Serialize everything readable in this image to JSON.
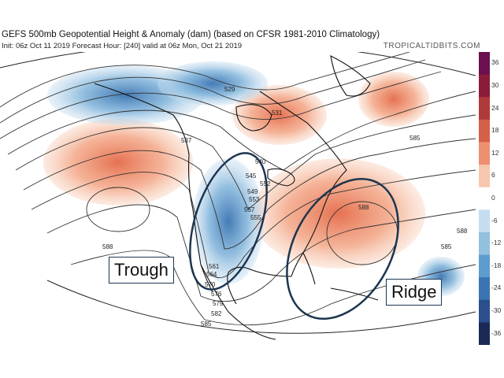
{
  "header": {
    "title": "GEFS 500mb Geopotential Height & Anomaly (dam) (based on CFSR 1981-2010 Climatology)",
    "subtitle": "Init: 06z Oct 11 2019   Forecast Hour: [240]   valid at 06z Mon, Oct 21 2019",
    "brand": "TROPICALTIDBITS.COM"
  },
  "colorbar": {
    "ticks": [
      "36",
      "30",
      "24",
      "18",
      "12",
      "6",
      "0",
      "-6",
      "-12",
      "-18",
      "-24",
      "-30",
      "-36"
    ],
    "colors": [
      "#6b0f50",
      "#8a1c3a",
      "#b03a3a",
      "#d4604a",
      "#ee9070",
      "#f7c7ad",
      "#ffffff",
      "#c6ddef",
      "#92c0df",
      "#5d9ccc",
      "#3a74b2",
      "#2a4f8c",
      "#1b2a55"
    ]
  },
  "contour_labels": [
    "529",
    "531",
    "537",
    "540",
    "545",
    "549",
    "553",
    "557",
    "561",
    "564",
    "570",
    "576",
    "579",
    "582",
    "585",
    "585",
    "585",
    "588",
    "588",
    "588",
    "552",
    "555"
  ],
  "annotations": {
    "trough": "Trough",
    "ridge": "Ridge"
  },
  "colors": {
    "warm_anomaly": "#f2a07e",
    "cold_anomaly": "#7fb3da",
    "outline": "#1d3550",
    "contour": "#333333"
  }
}
